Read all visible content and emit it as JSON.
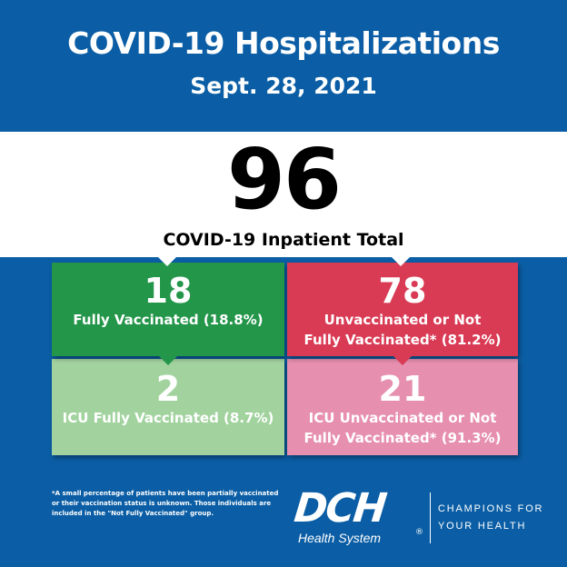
{
  "header": {
    "title": "COVID-19 Hospitalizations",
    "date": "Sept. 28, 2021"
  },
  "total": {
    "value": "96",
    "label": "COVID-19 Inpatient Total"
  },
  "boxes": {
    "fully_vaccinated": {
      "value": "18",
      "label": "Fully Vaccinated (18.8%)",
      "color": "#24964a"
    },
    "unvaccinated": {
      "value": "78",
      "label_line1": "Unvaccinated or Not",
      "label_line2": "Fully Vaccinated* (81.2%)",
      "color": "#d93a54"
    },
    "icu_fully_vaccinated": {
      "value": "2",
      "label": "ICU Fully Vaccinated (8.7%)",
      "color": "#a2d39f"
    },
    "icu_unvaccinated": {
      "value": "21",
      "label_line1": "ICU Unvaccinated or Not",
      "label_line2": "Fully Vaccinated* (91.3%)",
      "color": "#e68fae"
    }
  },
  "footnote": {
    "line1": "*A small percentage of patients have been partially vaccinated",
    "line2": "or their vaccination status is unknown. Those individuals are",
    "line3": "included in the \"Not Fully Vaccinated\" group."
  },
  "logo": {
    "name": "DCH",
    "subtitle": "Health System",
    "registered": "®",
    "tagline_line1": "CHAMPIONS FOR",
    "tagline_line2": "YOUR HEALTH"
  },
  "colors": {
    "background": "#0b5ea5",
    "band": "#ffffff"
  }
}
